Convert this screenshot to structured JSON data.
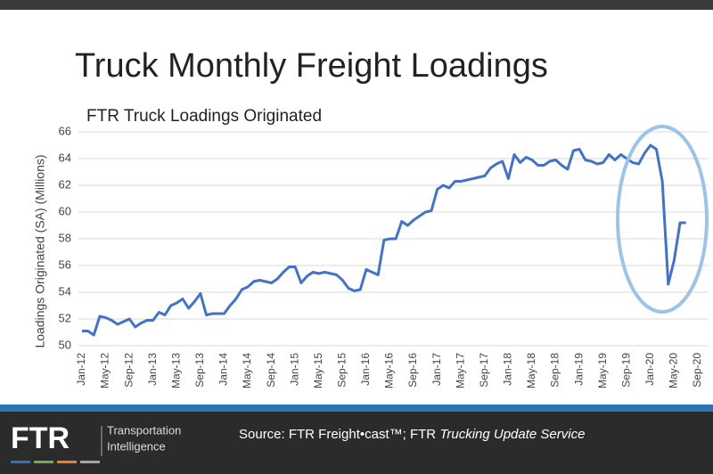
{
  "chart_data": {
    "type": "line",
    "title": "Truck Monthly Freight Loadings",
    "subtitle": "FTR Truck Loadings Originated",
    "y_label": "Loadings Originated (SA)   (Millions)",
    "categories": [
      "Jan-12",
      null,
      null,
      null,
      "May-12",
      null,
      null,
      null,
      "Sep-12",
      null,
      null,
      null,
      "Jan-13",
      null,
      null,
      null,
      "May-13",
      null,
      null,
      null,
      "Sep-13",
      null,
      null,
      null,
      "Jan-14",
      null,
      null,
      null,
      "May-14",
      null,
      null,
      null,
      "Sep-14",
      null,
      null,
      null,
      "Jan-15",
      null,
      null,
      null,
      "May-15",
      null,
      null,
      null,
      "Sep-15",
      null,
      null,
      null,
      "Jan-16",
      null,
      null,
      null,
      "May-16",
      null,
      null,
      null,
      "Sep-16",
      null,
      null,
      null,
      "Jan-17",
      null,
      null,
      null,
      "May-17",
      null,
      null,
      null,
      "Sep-17",
      null,
      null,
      null,
      "Jan-18",
      null,
      null,
      null,
      "May-18",
      null,
      null,
      null,
      "Sep-18",
      null,
      null,
      null,
      "Jan-19",
      null,
      null,
      null,
      "May-19",
      null,
      null,
      null,
      "Sep-19",
      null,
      null,
      null,
      "Jan-20",
      null,
      null,
      null,
      "May-20",
      null,
      null,
      null,
      "Sep-20"
    ],
    "series": [
      {
        "name": "Truck Loadings Originated",
        "color": "#4472c4",
        "values": [
          51.1,
          51.1,
          50.8,
          52.2,
          52.1,
          51.9,
          51.6,
          51.8,
          52.0,
          51.4,
          51.7,
          51.9,
          51.9,
          52.5,
          52.3,
          53.0,
          53.2,
          53.5,
          52.8,
          53.3,
          53.9,
          52.3,
          52.4,
          52.4,
          52.4,
          53.0,
          53.5,
          54.2,
          54.4,
          54.8,
          54.9,
          54.8,
          54.7,
          55.0,
          55.5,
          55.9,
          55.9,
          54.7,
          55.2,
          55.5,
          55.4,
          55.5,
          55.4,
          55.3,
          54.9,
          54.3,
          54.1,
          54.2,
          55.7,
          55.5,
          55.3,
          57.9,
          58.0,
          58.0,
          59.3,
          59.0,
          59.4,
          59.7,
          60.0,
          60.1,
          61.7,
          62.0,
          61.8,
          62.3,
          62.3,
          62.4,
          62.5,
          62.6,
          62.7,
          63.3,
          63.6,
          63.8,
          62.5,
          64.3,
          63.7,
          64.1,
          63.9,
          63.5,
          63.5,
          63.8,
          63.9,
          63.5,
          63.2,
          64.6,
          64.7,
          63.9,
          63.8,
          63.6,
          63.7,
          64.3,
          63.9,
          64.3,
          64.0,
          63.7,
          63.6,
          64.4,
          65.0,
          64.7,
          62.3,
          54.6,
          56.4,
          59.2,
          59.2,
          null,
          null
        ]
      }
    ],
    "ylim": [
      50,
      66
    ],
    "yticks": [
      50,
      52,
      54,
      56,
      58,
      60,
      62,
      64,
      66
    ],
    "grid": true
  },
  "footer": {
    "logo": "FTR",
    "tagline_1": "Transportation",
    "tagline_2": "Intelligence",
    "source": "Source: FTR Freight•cast™; FTR",
    "source_italic": "Trucking Update Service"
  }
}
